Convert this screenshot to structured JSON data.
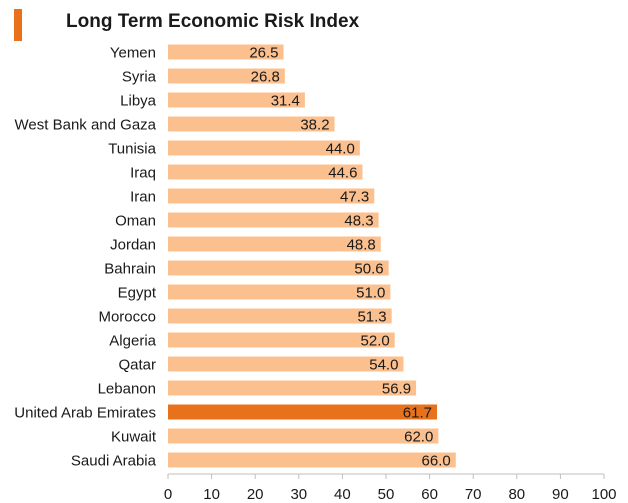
{
  "colors": {
    "bar": "#FBC08E",
    "highlight": "#E8721C",
    "marker": "#E8721C",
    "axis": "#BFBFBF",
    "text": "#1a1a1a"
  },
  "chart_data": {
    "type": "bar",
    "orientation": "horizontal",
    "title": "Long Term Economic Risk Index",
    "xlabel": "",
    "ylabel": "",
    "xlim": [
      0,
      100
    ],
    "xticks": [
      0,
      10,
      20,
      30,
      40,
      50,
      60,
      70,
      80,
      90,
      100
    ],
    "highlight": "United Arab Emirates",
    "categories": [
      "Yemen",
      "Syria",
      "Libya",
      "West Bank and Gaza",
      "Tunisia",
      "Iraq",
      "Iran",
      "Oman",
      "Jordan",
      "Bahrain",
      "Egypt",
      "Morocco",
      "Algeria",
      "Qatar",
      "Lebanon",
      "United Arab Emirates",
      "Kuwait",
      "Saudi Arabia"
    ],
    "values": [
      26.5,
      26.8,
      31.4,
      38.2,
      44.0,
      44.6,
      47.3,
      48.3,
      48.8,
      50.6,
      51.0,
      51.3,
      52.0,
      54.0,
      56.9,
      61.7,
      62.0,
      66.0
    ],
    "value_labels": [
      "26.5",
      "26.8",
      "31.4",
      "38.2",
      "44.0",
      "44.6",
      "47.3",
      "48.3",
      "48.8",
      "50.6",
      "51.0",
      "51.3",
      "52.0",
      "54.0",
      "56.9",
      "61.7",
      "62.0",
      "66.0"
    ]
  }
}
